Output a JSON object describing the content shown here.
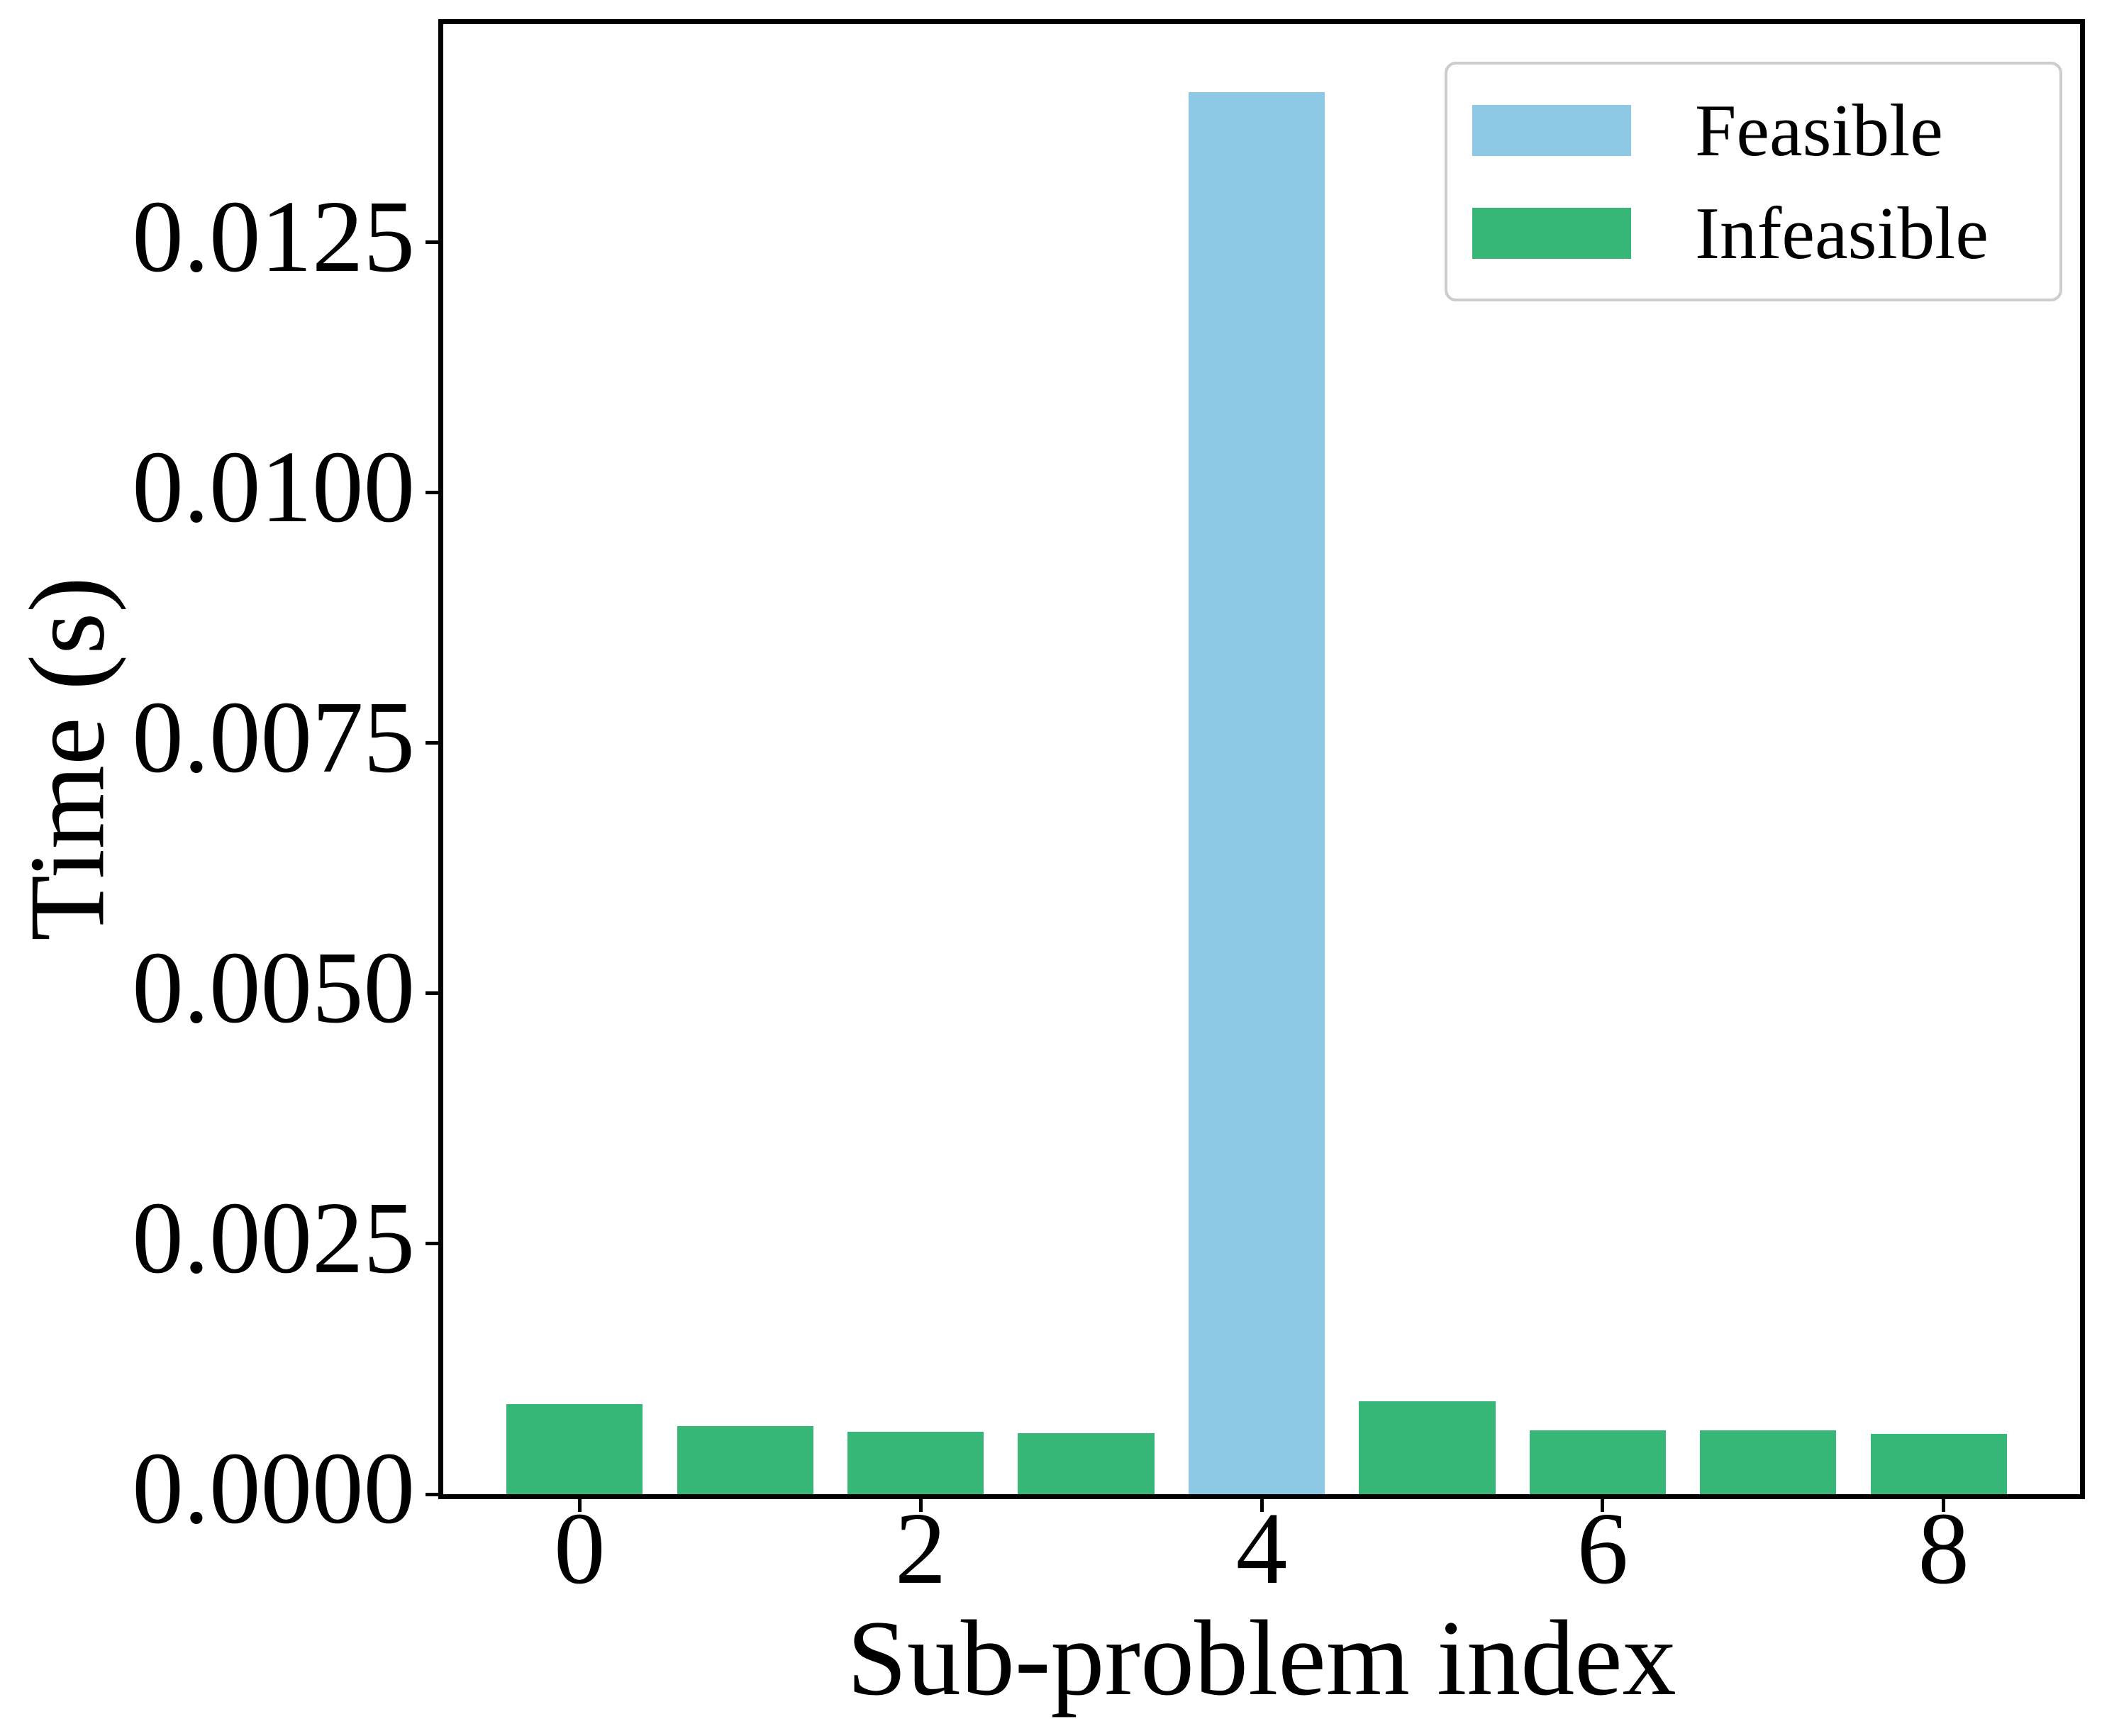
{
  "axes": {
    "xlabel": "Sub-problem index",
    "ylabel": "Time (s)"
  },
  "legend": {
    "position": "upper right",
    "items": [
      {
        "label": "Feasible",
        "color": "#8DC8E5"
      },
      {
        "label": "Infeasible",
        "color": "#36B778"
      }
    ]
  },
  "chart_data": {
    "type": "bar",
    "title": "",
    "xlabel": "Sub-problem index",
    "ylabel": "Time (s)",
    "categories": [
      0,
      1,
      2,
      3,
      4,
      5,
      6,
      7,
      8
    ],
    "series": [
      {
        "name": "Feasible",
        "color": "#8DC8E5",
        "values": [
          null,
          null,
          null,
          null,
          0.014,
          null,
          null,
          null,
          null
        ]
      },
      {
        "name": "Infeasible",
        "color": "#36B778",
        "values": [
          0.0009,
          0.00068,
          0.00062,
          0.00061,
          null,
          0.00093,
          0.00064,
          0.00064,
          0.0006
        ]
      }
    ],
    "bar_width": 0.8,
    "xlim": [
      -0.8,
      8.8
    ],
    "ylim": [
      0,
      0.01468
    ],
    "xticks": {
      "values": [
        0,
        2,
        4,
        6,
        8
      ],
      "labels": [
        "0",
        "2",
        "4",
        "6",
        "8"
      ]
    },
    "yticks": {
      "values": [
        0,
        0.0025,
        0.005,
        0.0075,
        0.01,
        0.0125
      ],
      "labels": [
        "0.0000",
        "0.0025",
        "0.0050",
        "0.0075",
        "0.0100",
        "0.0125"
      ]
    },
    "grid": false,
    "legend_position": "upper right"
  }
}
